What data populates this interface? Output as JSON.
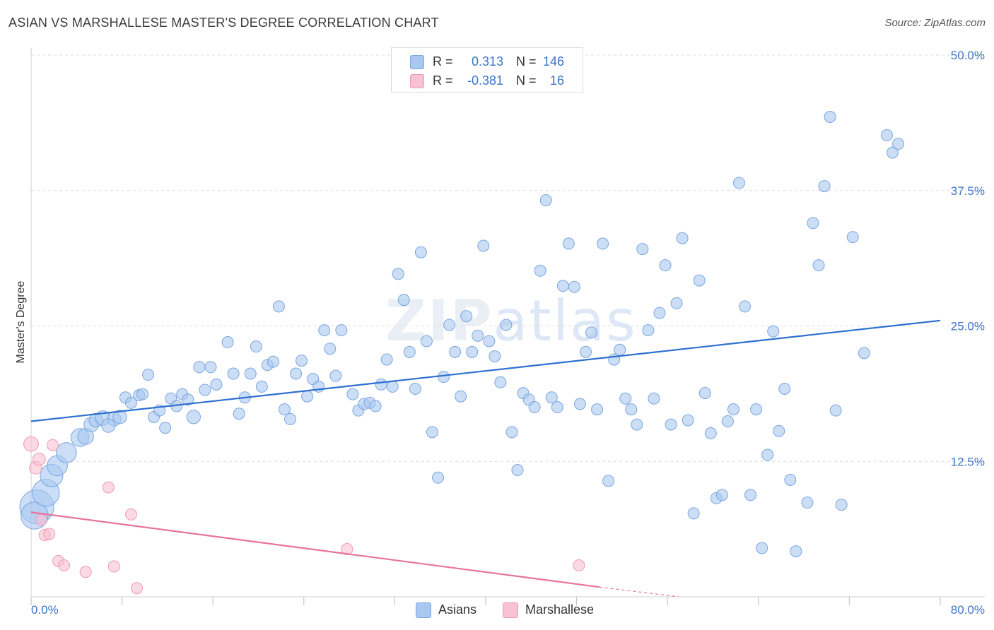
{
  "title": "ASIAN VS MARSHALLESE MASTER'S DEGREE CORRELATION CHART",
  "source": "Source: ZipAtlas.com",
  "watermark": {
    "bold": "ZIP",
    "thin": "atlas"
  },
  "legend": {
    "rows": [
      {
        "r_label": "R =",
        "r_value": "0.313",
        "n_label": "N =",
        "n_value": "146",
        "color": "#a9c8f0"
      },
      {
        "r_label": "R =",
        "r_value": "-0.381",
        "n_label": "N =",
        "n_value": "16",
        "color": "#f8bfd0"
      }
    ]
  },
  "bottom_legend": [
    {
      "label": "Asians",
      "color": "#a9c8f0"
    },
    {
      "label": "Marshallese",
      "color": "#f8bfd0"
    }
  ],
  "colors": {
    "asian_fill": "#a9c8f0",
    "asian_stroke": "#7aa6e0",
    "asian_line": "#2f6fd1",
    "marsh_fill": "#f8c2d2",
    "marsh_stroke": "#ee9ab4",
    "marsh_line": "#e8739a",
    "grid": "#dcdcdc",
    "tick_text": "#3d74c6"
  },
  "chart_data": {
    "type": "scatter",
    "title": "ASIAN VS MARSHALLESE MASTER'S DEGREE CORRELATION CHART",
    "xlabel": "",
    "ylabel": "Master's Degree",
    "xlim": [
      0,
      80
    ],
    "ylim": [
      0,
      50
    ],
    "x_ticks": [
      "0.0%",
      "80.0%"
    ],
    "y_ticks": [
      "12.5%",
      "25.0%",
      "37.5%",
      "50.0%"
    ],
    "y_tick_values": [
      12.5,
      25.0,
      37.5,
      50.0
    ],
    "grid": true,
    "legend_position": "top-center",
    "series": [
      {
        "name": "Asians",
        "trend": {
          "x": [
            0,
            80
          ],
          "y": [
            16.2,
            25.5
          ]
        },
        "points": [
          [
            0.5,
            8.3,
            3
          ],
          [
            0.3,
            7.5,
            2.4
          ],
          [
            1.3,
            9.6,
            2.4
          ],
          [
            1.8,
            11.2,
            2
          ],
          [
            2.3,
            12.1,
            1.8
          ],
          [
            3.1,
            13.3,
            1.8
          ],
          [
            4.3,
            14.7,
            1.6
          ],
          [
            4.8,
            14.8,
            1.4
          ],
          [
            5.3,
            15.9,
            1.3
          ],
          [
            5.7,
            16.3,
            1.2
          ],
          [
            6.3,
            16.5,
            1.3
          ],
          [
            7.3,
            16.4,
            1.2
          ],
          [
            6.8,
            15.8,
            1.2
          ],
          [
            7.8,
            16.6,
            1.2
          ],
          [
            8.3,
            18.4,
            1
          ],
          [
            8.8,
            17.9,
            1
          ],
          [
            9.5,
            18.6,
            1
          ],
          [
            9.8,
            18.7,
            1
          ],
          [
            10.3,
            20.5,
            1
          ],
          [
            10.8,
            16.6,
            1
          ],
          [
            11.3,
            17.2,
            1
          ],
          [
            11.8,
            15.6,
            1
          ],
          [
            12.3,
            18.3,
            1
          ],
          [
            12.8,
            17.6,
            1
          ],
          [
            13.3,
            18.7,
            1
          ],
          [
            13.8,
            18.2,
            1
          ],
          [
            14.3,
            16.6,
            1.2
          ],
          [
            14.8,
            21.2,
            1
          ],
          [
            15.3,
            19.1,
            1
          ],
          [
            15.8,
            21.2,
            1
          ],
          [
            16.3,
            19.6,
            1
          ],
          [
            17.3,
            23.5,
            1
          ],
          [
            17.8,
            20.6,
            1
          ],
          [
            18.3,
            16.9,
            1
          ],
          [
            18.8,
            18.4,
            1
          ],
          [
            19.3,
            20.6,
            1
          ],
          [
            19.8,
            23.1,
            1
          ],
          [
            20.3,
            19.4,
            1
          ],
          [
            20.8,
            21.4,
            1
          ],
          [
            21.3,
            21.7,
            1
          ],
          [
            21.8,
            26.8,
            1
          ],
          [
            22.3,
            17.3,
            1
          ],
          [
            22.8,
            16.4,
            1
          ],
          [
            23.3,
            20.6,
            1
          ],
          [
            23.8,
            21.8,
            1
          ],
          [
            24.3,
            18.5,
            1
          ],
          [
            24.8,
            20.1,
            1
          ],
          [
            25.3,
            19.4,
            1
          ],
          [
            25.8,
            24.6,
            1
          ],
          [
            26.3,
            22.9,
            1
          ],
          [
            26.8,
            20.4,
            1
          ],
          [
            27.3,
            24.6,
            1
          ],
          [
            28.3,
            18.7,
            1
          ],
          [
            28.8,
            17.2,
            1
          ],
          [
            29.3,
            17.8,
            1
          ],
          [
            29.8,
            17.9,
            1
          ],
          [
            30.3,
            17.6,
            1
          ],
          [
            30.8,
            19.6,
            1
          ],
          [
            31.3,
            21.9,
            1
          ],
          [
            31.8,
            19.4,
            1
          ],
          [
            32.3,
            29.8,
            1
          ],
          [
            32.8,
            27.4,
            1
          ],
          [
            33.3,
            22.6,
            1
          ],
          [
            33.8,
            19.2,
            1
          ],
          [
            34.3,
            31.8,
            1
          ],
          [
            34.8,
            23.6,
            1
          ],
          [
            35.3,
            15.2,
            1
          ],
          [
            35.8,
            11.0,
            1
          ],
          [
            36.3,
            20.3,
            1
          ],
          [
            36.8,
            25.1,
            1
          ],
          [
            37.3,
            22.6,
            1
          ],
          [
            37.8,
            18.5,
            1
          ],
          [
            38.3,
            25.9,
            1
          ],
          [
            38.8,
            22.6,
            1
          ],
          [
            39.3,
            24.1,
            1
          ],
          [
            39.8,
            32.4,
            1
          ],
          [
            40.3,
            23.6,
            1
          ],
          [
            40.8,
            22.2,
            1
          ],
          [
            41.3,
            19.8,
            1
          ],
          [
            41.8,
            25.1,
            1
          ],
          [
            42.3,
            15.2,
            1
          ],
          [
            42.8,
            11.7,
            1
          ],
          [
            43.3,
            18.8,
            1
          ],
          [
            43.8,
            18.2,
            1
          ],
          [
            44.3,
            17.5,
            1
          ],
          [
            44.8,
            30.1,
            1
          ],
          [
            45.3,
            36.6,
            1
          ],
          [
            45.8,
            18.4,
            1
          ],
          [
            46.3,
            17.5,
            1
          ],
          [
            46.8,
            28.7,
            1
          ],
          [
            47.3,
            32.6,
            1
          ],
          [
            47.8,
            28.6,
            1
          ],
          [
            48.3,
            17.8,
            1
          ],
          [
            48.8,
            22.6,
            1
          ],
          [
            49.3,
            24.4,
            1
          ],
          [
            49.8,
            17.3,
            1
          ],
          [
            50.3,
            32.6,
            1
          ],
          [
            50.8,
            10.7,
            1
          ],
          [
            51.3,
            21.9,
            1
          ],
          [
            51.8,
            22.8,
            1
          ],
          [
            52.3,
            18.3,
            1
          ],
          [
            52.8,
            17.3,
            1
          ],
          [
            53.3,
            15.9,
            1
          ],
          [
            53.8,
            32.1,
            1
          ],
          [
            54.3,
            24.6,
            1
          ],
          [
            54.8,
            18.3,
            1
          ],
          [
            55.3,
            26.2,
            1
          ],
          [
            55.8,
            30.6,
            1
          ],
          [
            56.3,
            15.9,
            1
          ],
          [
            56.8,
            27.1,
            1
          ],
          [
            57.3,
            33.1,
            1
          ],
          [
            57.8,
            16.3,
            1
          ],
          [
            58.3,
            7.7,
            1
          ],
          [
            58.8,
            29.2,
            1
          ],
          [
            59.3,
            18.8,
            1
          ],
          [
            59.8,
            15.1,
            1
          ],
          [
            60.3,
            9.1,
            1
          ],
          [
            60.8,
            9.4,
            1
          ],
          [
            61.3,
            16.2,
            1
          ],
          [
            61.8,
            17.3,
            1
          ],
          [
            62.3,
            38.2,
            1
          ],
          [
            62.8,
            26.8,
            1
          ],
          [
            63.3,
            9.4,
            1
          ],
          [
            63.8,
            17.3,
            1
          ],
          [
            64.3,
            4.5,
            1
          ],
          [
            64.8,
            13.1,
            1
          ],
          [
            65.3,
            24.5,
            1
          ],
          [
            65.8,
            15.3,
            1
          ],
          [
            66.3,
            19.2,
            1
          ],
          [
            66.8,
            10.8,
            1
          ],
          [
            67.3,
            4.2,
            1
          ],
          [
            68.3,
            8.7,
            1
          ],
          [
            68.8,
            34.5,
            1
          ],
          [
            69.3,
            30.6,
            1
          ],
          [
            69.8,
            37.9,
            1
          ],
          [
            70.3,
            44.3,
            1
          ],
          [
            70.8,
            17.2,
            1
          ],
          [
            71.3,
            8.5,
            1
          ],
          [
            72.3,
            33.2,
            1
          ],
          [
            73.3,
            22.5,
            1
          ],
          [
            75.3,
            42.6,
            1
          ],
          [
            75.8,
            41.0,
            1
          ],
          [
            76.3,
            41.8,
            1
          ]
        ]
      },
      {
        "name": "Marshallese",
        "trend": {
          "x": [
            0,
            50
          ],
          "y": [
            7.8,
            0.9
          ]
        },
        "trend_dashed": {
          "x": [
            50,
            57
          ],
          "y": [
            0.9,
            0.0
          ]
        },
        "points": [
          [
            0.0,
            14.1,
            1.3
          ],
          [
            0.4,
            11.9,
            1.1
          ],
          [
            0.7,
            12.7,
            1.1
          ],
          [
            0.9,
            7.1,
            1
          ],
          [
            1.2,
            5.7,
            1
          ],
          [
            1.6,
            5.8,
            1
          ],
          [
            1.9,
            14.0,
            1
          ],
          [
            2.4,
            3.3,
            1
          ],
          [
            2.9,
            2.9,
            1
          ],
          [
            4.8,
            2.3,
            1
          ],
          [
            6.8,
            10.1,
            1
          ],
          [
            7.3,
            2.8,
            1
          ],
          [
            8.8,
            7.6,
            1
          ],
          [
            9.3,
            0.8,
            1
          ],
          [
            27.8,
            4.4,
            1
          ],
          [
            48.2,
            2.9,
            1
          ]
        ]
      }
    ]
  }
}
